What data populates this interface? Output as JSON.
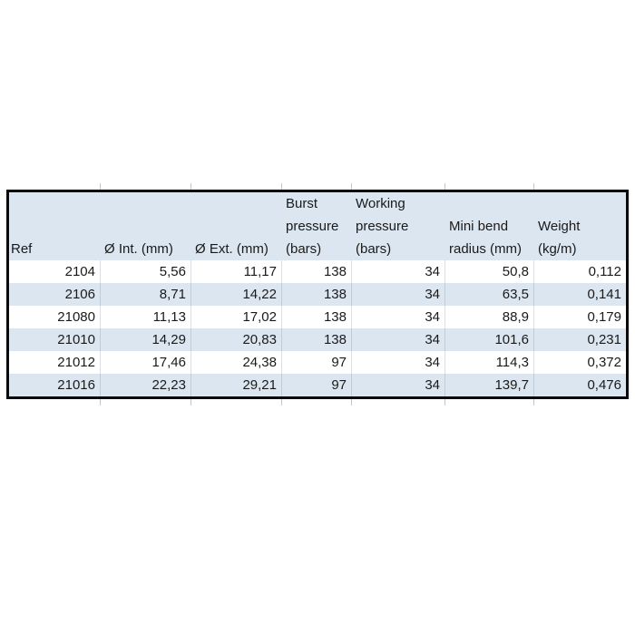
{
  "colors": {
    "band_blue": "#dce6f1",
    "table_border": "#0a0a0a",
    "text": "#1a1a1a",
    "gridline_tick": "#c6c6c6",
    "background": "#ffffff"
  },
  "table": {
    "name": "hose-specification-table",
    "header": {
      "cells": [
        {
          "id": "ref",
          "lines": [
            "Ref"
          ]
        },
        {
          "id": "int-diameter",
          "lines": [
            "Ø Int. (mm)"
          ]
        },
        {
          "id": "ext-diameter",
          "lines": [
            "Ø Ext. (mm)"
          ]
        },
        {
          "id": "burst-pressure",
          "lines": [
            "Burst",
            "pressure",
            "(bars)"
          ]
        },
        {
          "id": "working-pressure",
          "lines": [
            "Working",
            "pressure",
            "(bars)"
          ]
        },
        {
          "id": "mini-bend-radius",
          "lines": [
            "Mini bend",
            "radius (mm)"
          ]
        },
        {
          "id": "weight",
          "lines": [
            "Weight",
            "(kg/m)"
          ]
        }
      ]
    },
    "rows": [
      {
        "cells": [
          "2104",
          "5,56",
          "11,17",
          "138",
          "34",
          "50,8",
          "0,112"
        ]
      },
      {
        "cells": [
          "2106",
          "8,71",
          "14,22",
          "138",
          "34",
          "63,5",
          "0,141"
        ]
      },
      {
        "cells": [
          "21080",
          "11,13",
          "17,02",
          "138",
          "34",
          "88,9",
          "0,179"
        ]
      },
      {
        "cells": [
          "21010",
          "14,29",
          "20,83",
          "138",
          "34",
          "101,6",
          "0,231"
        ]
      },
      {
        "cells": [
          "21012",
          "17,46",
          "24,38",
          "97",
          "34",
          "114,3",
          "0,372"
        ]
      },
      {
        "cells": [
          "21016",
          "22,23",
          "29,21",
          "97",
          "34",
          "139,7",
          "0,476"
        ]
      }
    ]
  }
}
